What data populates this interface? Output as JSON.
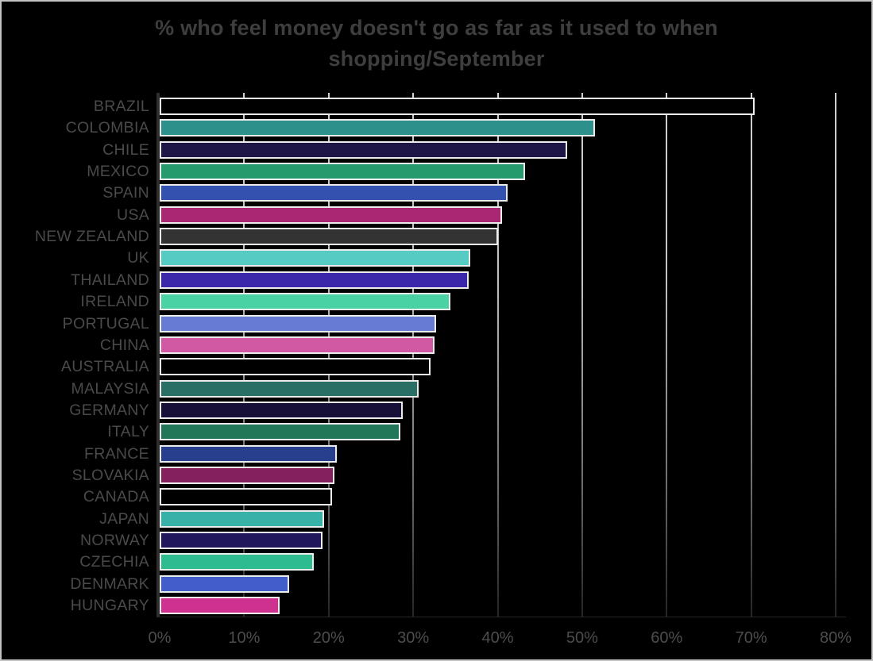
{
  "header": {
    "title_lines": [
      "% who feel money doesn't go as far as it used to when",
      "shopping/September"
    ]
  },
  "chart_data": {
    "type": "bar",
    "orientation": "horizontal",
    "title": "% who feel money doesn't go as far as it used to when shopping/September",
    "xlabel": "",
    "ylabel": "",
    "legend": false,
    "grid": true,
    "background": "#000000",
    "bar_border_color": "#ececec",
    "x_axis": {
      "min": 0,
      "max": 80,
      "tick_step": 10,
      "tick_labels": [
        "0%",
        "10%",
        "20%",
        "30%",
        "40%",
        "50%",
        "60%",
        "70%",
        "80%"
      ]
    },
    "categories": [
      "BRAZIL",
      "COLOMBIA",
      "CHILE",
      "MEXICO",
      "SPAIN",
      "USA",
      "NEW ZEALAND",
      "UK",
      "THAILAND",
      "IRELAND",
      "PORTUGAL",
      "CHINA",
      "AUSTRALIA",
      "MALAYSIA",
      "GERMANY",
      "ITALY",
      "FRANCE",
      "SLOVAKIA",
      "CANADA",
      "JAPAN",
      "NORWAY",
      "CZECHIA",
      "DENMARK",
      "HUNGARY"
    ],
    "values": [
      70.4,
      51.5,
      48.2,
      43.2,
      41.2,
      40.5,
      40.0,
      36.8,
      36.6,
      34.4,
      32.7,
      32.5,
      32.1,
      30.6,
      28.8,
      28.5,
      21.0,
      20.7,
      20.4,
      19.5,
      19.3,
      18.2,
      15.3,
      14.2
    ],
    "bar_colors": [
      "#000000",
      "#2e908b",
      "#1e1647",
      "#26996d",
      "#3351af",
      "#aa2873",
      "#333333",
      "#55cbc3",
      "#3a27a9",
      "#49d3a5",
      "#677ad4",
      "#d158a2",
      "#000000",
      "#2a6f66",
      "#171039",
      "#217757",
      "#283f8e",
      "#84215c",
      "#000000",
      "#38b2a9",
      "#20175c",
      "#2cbc90",
      "#425ec9",
      "#ce3190"
    ]
  },
  "style": {
    "title_color": "#3e3e3e",
    "label_color": "#4a4a4a",
    "tick_color": "#4d4d4d",
    "gridline_top_color": "#d0d0d0",
    "gridline_bottom_color": "#242424",
    "axis_color": "#2e2e2e"
  }
}
